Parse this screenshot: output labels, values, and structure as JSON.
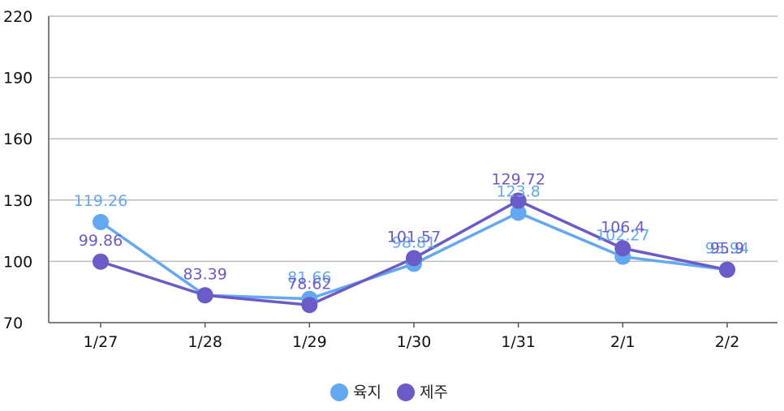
{
  "chart_data": {
    "type": "line",
    "categories": [
      "1/27",
      "1/28",
      "1/29",
      "1/30",
      "1/31",
      "2/1",
      "2/2"
    ],
    "series": [
      {
        "name": "육지",
        "color": "#62a8f2",
        "values": [
          119.26,
          83.39,
          81.66,
          98.81,
          123.8,
          102.27,
          95.94
        ]
      },
      {
        "name": "제주",
        "color": "#6b5bc8",
        "values": [
          99.86,
          83.39,
          78.62,
          101.57,
          129.72,
          106.4,
          95.9
        ]
      }
    ],
    "data_labels": [
      [
        "119.26",
        "",
        "81.66",
        "98.81",
        "123.8",
        "102.27",
        "95.94"
      ],
      [
        "99.86",
        "83.39",
        "78.62",
        "101.57",
        "129.72",
        "106.4",
        "95.9"
      ]
    ],
    "yticks": [
      70,
      100,
      130,
      160,
      190,
      220
    ],
    "ylim": [
      70,
      220
    ],
    "grid": "horizontal",
    "legend_position": "bottom-center",
    "title": "",
    "xlabel": "",
    "ylabel": ""
  }
}
